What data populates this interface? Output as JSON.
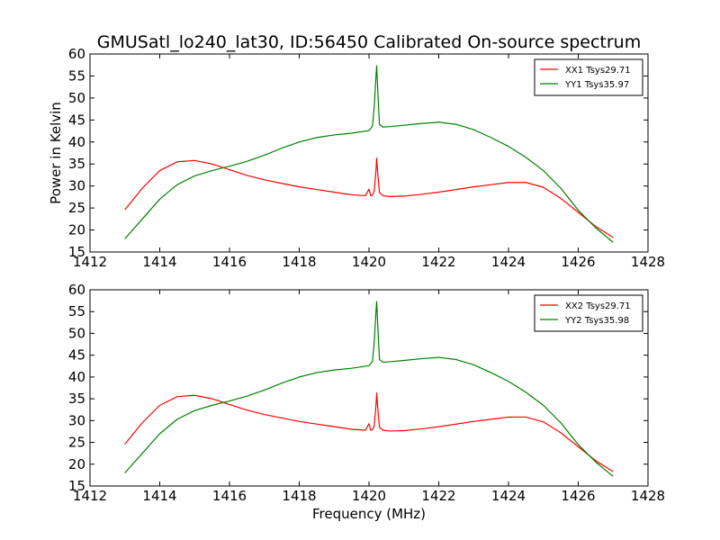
{
  "figure": {
    "title": "GMUSatl_lo240_lat30, ID:56450 Calibrated On-source spectrum"
  },
  "chart_data": [
    {
      "type": "line",
      "title": "GMUSatl_lo240_lat30, ID:56450 Calibrated On-source spectrum",
      "xlabel": "",
      "ylabel": "Power in Kelvin",
      "xlim": [
        1412,
        1428
      ],
      "ylim": [
        15,
        60
      ],
      "xticks": [
        1412,
        1414,
        1416,
        1418,
        1420,
        1422,
        1424,
        1426,
        1428
      ],
      "yticks": [
        15,
        20,
        25,
        30,
        35,
        40,
        45,
        50,
        55,
        60
      ],
      "grid": false,
      "legend_position": "top-right",
      "series": [
        {
          "name": "XX1 Tsys29.71",
          "color": "#ff0000",
          "x": [
            1413.0,
            1413.5,
            1414.0,
            1414.5,
            1415.0,
            1415.5,
            1416.0,
            1416.5,
            1417.0,
            1417.5,
            1418.0,
            1418.5,
            1419.0,
            1419.5,
            1419.9,
            1420.0,
            1420.05,
            1420.1,
            1420.15,
            1420.2,
            1420.22,
            1420.25,
            1420.3,
            1420.4,
            1420.6,
            1421.0,
            1421.5,
            1422.0,
            1422.5,
            1423.0,
            1423.5,
            1424.0,
            1424.5,
            1425.0,
            1425.5,
            1426.0,
            1426.5,
            1427.0
          ],
          "y": [
            24.6,
            29.5,
            33.5,
            35.5,
            35.8,
            35.0,
            33.7,
            32.4,
            31.4,
            30.6,
            29.8,
            29.2,
            28.6,
            28.0,
            27.8,
            29.3,
            27.8,
            27.9,
            28.8,
            33.5,
            36.3,
            33.0,
            28.5,
            27.8,
            27.6,
            27.7,
            28.1,
            28.6,
            29.2,
            29.8,
            30.3,
            30.8,
            30.8,
            29.7,
            27.2,
            24.0,
            20.8,
            18.3
          ]
        },
        {
          "name": "YY1 Tsys35.97",
          "color": "#008000",
          "x": [
            1413.0,
            1413.5,
            1414.0,
            1414.5,
            1415.0,
            1415.5,
            1416.0,
            1416.5,
            1417.0,
            1417.5,
            1418.0,
            1418.5,
            1419.0,
            1419.5,
            1420.0,
            1420.1,
            1420.15,
            1420.2,
            1420.22,
            1420.25,
            1420.3,
            1420.4,
            1420.6,
            1421.0,
            1421.5,
            1422.0,
            1422.5,
            1423.0,
            1423.5,
            1424.0,
            1424.5,
            1425.0,
            1425.5,
            1426.0,
            1426.5,
            1427.0
          ],
          "y": [
            18.0,
            22.5,
            27.0,
            30.3,
            32.3,
            33.5,
            34.5,
            35.6,
            37.0,
            38.6,
            40.0,
            41.0,
            41.6,
            42.0,
            42.6,
            43.6,
            48.0,
            55.0,
            57.3,
            52.0,
            44.0,
            43.4,
            43.5,
            43.8,
            44.2,
            44.5,
            44.0,
            42.8,
            41.0,
            39.0,
            36.5,
            33.5,
            29.5,
            24.5,
            20.5,
            17.2
          ]
        }
      ]
    },
    {
      "type": "line",
      "title": "",
      "xlabel": "Frequency (MHz)",
      "ylabel": "",
      "xlim": [
        1412,
        1428
      ],
      "ylim": [
        15,
        60
      ],
      "xticks": [
        1412,
        1414,
        1416,
        1418,
        1420,
        1422,
        1424,
        1426,
        1428
      ],
      "yticks": [
        15,
        20,
        25,
        30,
        35,
        40,
        45,
        50,
        55,
        60
      ],
      "grid": false,
      "legend_position": "top-right",
      "series": [
        {
          "name": "XX2 Tsys29.71",
          "color": "#ff0000",
          "x": [
            1413.0,
            1413.5,
            1414.0,
            1414.5,
            1415.0,
            1415.5,
            1416.0,
            1416.5,
            1417.0,
            1417.5,
            1418.0,
            1418.5,
            1419.0,
            1419.5,
            1419.9,
            1420.0,
            1420.05,
            1420.1,
            1420.15,
            1420.2,
            1420.22,
            1420.25,
            1420.3,
            1420.4,
            1420.6,
            1421.0,
            1421.5,
            1422.0,
            1422.5,
            1423.0,
            1423.5,
            1424.0,
            1424.5,
            1425.0,
            1425.5,
            1426.0,
            1426.5,
            1427.0
          ],
          "y": [
            24.6,
            29.5,
            33.5,
            35.5,
            35.8,
            35.0,
            33.7,
            32.4,
            31.4,
            30.6,
            29.8,
            29.2,
            28.6,
            28.0,
            27.8,
            29.3,
            27.8,
            27.9,
            28.8,
            33.5,
            36.3,
            33.0,
            28.5,
            27.8,
            27.6,
            27.7,
            28.1,
            28.6,
            29.2,
            29.8,
            30.3,
            30.8,
            30.8,
            29.7,
            27.2,
            24.0,
            20.8,
            18.3
          ]
        },
        {
          "name": "YY2 Tsys35.98",
          "color": "#008000",
          "x": [
            1413.0,
            1413.5,
            1414.0,
            1414.5,
            1415.0,
            1415.5,
            1416.0,
            1416.5,
            1417.0,
            1417.5,
            1418.0,
            1418.5,
            1419.0,
            1419.5,
            1420.0,
            1420.1,
            1420.15,
            1420.2,
            1420.22,
            1420.25,
            1420.3,
            1420.4,
            1420.6,
            1421.0,
            1421.5,
            1422.0,
            1422.5,
            1423.0,
            1423.5,
            1424.0,
            1424.5,
            1425.0,
            1425.5,
            1426.0,
            1426.5,
            1427.0
          ],
          "y": [
            18.0,
            22.5,
            27.0,
            30.3,
            32.3,
            33.5,
            34.5,
            35.6,
            37.0,
            38.6,
            40.0,
            41.0,
            41.6,
            42.0,
            42.6,
            43.6,
            48.0,
            55.0,
            57.3,
            52.0,
            44.0,
            43.4,
            43.5,
            43.8,
            44.2,
            44.5,
            44.0,
            42.8,
            41.0,
            39.0,
            36.5,
            33.5,
            29.5,
            24.5,
            20.5,
            17.2
          ]
        }
      ]
    }
  ]
}
